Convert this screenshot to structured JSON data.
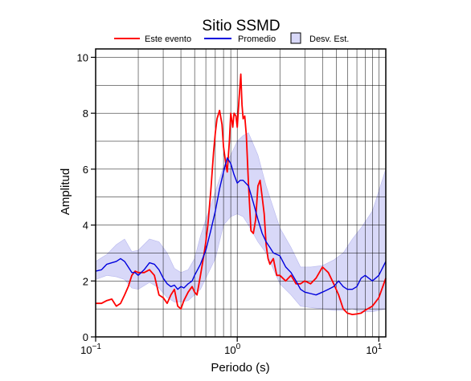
{
  "chart_data": {
    "type": "line",
    "title": "Sitio SSMD",
    "xlabel": "Periodo (s)",
    "ylabel": "Amplitud",
    "xscale": "log",
    "xlim": [
      0.1,
      11.2
    ],
    "ylim": [
      0,
      10.3
    ],
    "xticks": [
      {
        "value": 0.1,
        "base": "10",
        "exp": "−1"
      },
      {
        "value": 1,
        "base": "10",
        "exp": "0"
      },
      {
        "value": 10,
        "base": "10",
        "exp": "1"
      }
    ],
    "yticks": [
      0,
      2,
      4,
      6,
      8,
      10
    ],
    "grid": true,
    "legend_position": "top",
    "legend": [
      "Este evento",
      "Promedio",
      "Desv. Est."
    ],
    "colors": {
      "event": "#ff0000",
      "mean": "#0000dd",
      "band_fill": "#d8d8f8",
      "band_edge": "#b8b8ee"
    },
    "series": [
      {
        "name": "Este evento",
        "x": [
          0.1,
          0.11,
          0.12,
          0.13,
          0.14,
          0.15,
          0.16,
          0.17,
          0.18,
          0.19,
          0.2,
          0.22,
          0.24,
          0.26,
          0.28,
          0.3,
          0.32,
          0.34,
          0.36,
          0.38,
          0.4,
          0.42,
          0.45,
          0.48,
          0.5,
          0.52,
          0.55,
          0.58,
          0.6,
          0.62,
          0.65,
          0.68,
          0.7,
          0.72,
          0.75,
          0.78,
          0.8,
          0.83,
          0.85,
          0.88,
          0.9,
          0.93,
          0.95,
          0.98,
          1.0,
          1.03,
          1.06,
          1.08,
          1.1,
          1.13,
          1.16,
          1.2,
          1.25,
          1.3,
          1.35,
          1.4,
          1.45,
          1.5,
          1.55,
          1.6,
          1.65,
          1.7,
          1.8,
          1.9,
          2.0,
          2.2,
          2.4,
          2.6,
          2.8,
          3.0,
          3.3,
          3.6,
          4.0,
          4.4,
          4.8,
          5.2,
          5.6,
          6.0,
          6.5,
          7.0,
          7.5,
          8.0,
          9.0,
          10.0,
          11.2
        ],
        "values": [
          1.2,
          1.2,
          1.3,
          1.35,
          1.1,
          1.2,
          1.5,
          1.8,
          2.2,
          2.35,
          2.3,
          2.3,
          2.4,
          2.2,
          1.5,
          1.4,
          1.2,
          1.5,
          1.7,
          1.1,
          1.0,
          1.3,
          1.6,
          1.8,
          1.6,
          1.5,
          2.2,
          2.9,
          3.4,
          4.0,
          5.2,
          6.6,
          7.3,
          7.8,
          8.1,
          7.6,
          6.8,
          6.2,
          5.9,
          7.0,
          8.0,
          7.5,
          8.0,
          7.9,
          7.5,
          8.5,
          9.4,
          8.3,
          7.8,
          7.9,
          7.2,
          5.5,
          3.8,
          3.7,
          4.2,
          5.4,
          5.6,
          5.0,
          4.4,
          3.3,
          2.8,
          2.6,
          2.8,
          2.2,
          2.2,
          2.0,
          2.2,
          1.9,
          1.9,
          2.0,
          1.9,
          2.1,
          2.5,
          2.3,
          1.9,
          1.5,
          1.0,
          0.85,
          0.8,
          0.82,
          0.85,
          0.95,
          1.1,
          1.4,
          2.1
        ]
      },
      {
        "name": "Promedio",
        "x": [
          0.1,
          0.11,
          0.12,
          0.13,
          0.14,
          0.15,
          0.16,
          0.17,
          0.18,
          0.19,
          0.2,
          0.22,
          0.24,
          0.26,
          0.28,
          0.3,
          0.32,
          0.34,
          0.36,
          0.38,
          0.4,
          0.42,
          0.45,
          0.48,
          0.5,
          0.55,
          0.6,
          0.65,
          0.7,
          0.75,
          0.8,
          0.85,
          0.9,
          0.95,
          1.0,
          1.05,
          1.1,
          1.2,
          1.3,
          1.4,
          1.5,
          1.6,
          1.7,
          1.8,
          2.0,
          2.2,
          2.4,
          2.6,
          2.8,
          3.0,
          3.3,
          3.6,
          4.0,
          4.4,
          4.8,
          5.2,
          5.6,
          6.0,
          6.5,
          7.0,
          7.5,
          8.0,
          9.0,
          10.0,
          11.2
        ],
        "values": [
          2.35,
          2.4,
          2.6,
          2.65,
          2.7,
          2.8,
          2.7,
          2.5,
          2.3,
          2.3,
          2.2,
          2.4,
          2.65,
          2.6,
          2.4,
          2.1,
          1.9,
          1.8,
          1.85,
          1.7,
          1.8,
          1.75,
          1.9,
          2.0,
          2.2,
          2.6,
          3.1,
          3.8,
          4.5,
          5.3,
          5.9,
          6.4,
          6.2,
          5.8,
          5.5,
          5.6,
          5.6,
          5.4,
          4.8,
          4.2,
          3.7,
          3.4,
          3.2,
          3.0,
          2.9,
          2.5,
          2.3,
          2.0,
          1.7,
          1.6,
          1.55,
          1.5,
          1.6,
          1.7,
          1.8,
          2.0,
          1.8,
          1.7,
          1.7,
          1.8,
          2.1,
          2.2,
          2.0,
          2.2,
          2.7
        ]
      }
    ],
    "std_band": {
      "name": "Desv. Est.",
      "x": [
        0.1,
        0.12,
        0.14,
        0.16,
        0.18,
        0.2,
        0.24,
        0.28,
        0.32,
        0.36,
        0.4,
        0.45,
        0.5,
        0.55,
        0.6,
        0.7,
        0.8,
        0.9,
        1.0,
        1.1,
        1.2,
        1.4,
        1.6,
        2.0,
        2.4,
        2.8,
        3.3,
        4.0,
        4.8,
        5.6,
        6.5,
        7.5,
        9.0,
        11.2
      ],
      "upper": [
        2.7,
        2.95,
        3.3,
        3.5,
        3.05,
        3.1,
        3.5,
        3.4,
        3.0,
        2.45,
        2.3,
        2.4,
        2.8,
        3.6,
        4.2,
        5.2,
        6.1,
        6.5,
        7.0,
        7.2,
        7.3,
        6.5,
        5.4,
        3.9,
        3.2,
        2.5,
        2.5,
        2.55,
        2.75,
        3.0,
        3.5,
        3.9,
        4.5,
        6.0
      ],
      "lower": [
        2.05,
        2.2,
        2.15,
        2.05,
        1.75,
        1.7,
        1.95,
        1.75,
        1.4,
        1.25,
        1.25,
        1.3,
        1.5,
        1.7,
        2.1,
        2.8,
        4.0,
        4.3,
        4.4,
        4.3,
        4.0,
        3.4,
        3.0,
        1.9,
        1.5,
        1.1,
        1.05,
        1.0,
        0.95,
        0.95,
        1.0,
        0.9,
        0.9,
        1.0
      ]
    }
  }
}
